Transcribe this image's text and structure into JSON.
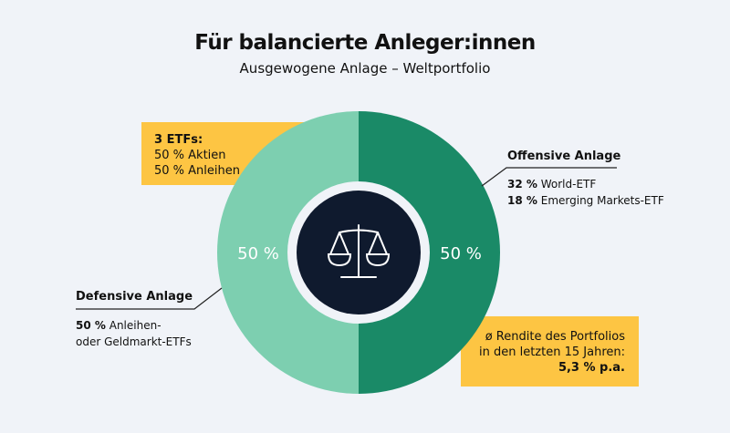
{
  "header": {
    "title": "Für balancierte Anleger:innen",
    "subtitle": "Ausgewogene Anlage – Weltportfolio"
  },
  "info_box": {
    "heading": "3 ETFs:",
    "lines": [
      "50 % Aktien",
      "50 % Anleihen"
    ]
  },
  "return_box": {
    "line1": "ø Rendite des Portfolios",
    "line2": "in den letzten 15 Jahren:",
    "value": "5,3 % p.a."
  },
  "defensive": {
    "heading": "Defensive Anlage",
    "pct": "50 %",
    "line1": "Anleihen-",
    "line2": "oder Geldmarkt-ETFs"
  },
  "offensive": {
    "heading": "Offensive Anlage",
    "items": [
      {
        "pct": "32 %",
        "label": "World-ETF"
      },
      {
        "pct": "18 %",
        "label": "Emerging Markets-ETF"
      }
    ]
  },
  "center_icon": "scales-icon",
  "chart_data": {
    "type": "pie",
    "title": "Ausgewogene Anlage – Weltportfolio",
    "slices": [
      {
        "name": "Offensive Anlage",
        "value": 50,
        "label": "50 %",
        "color": "#1a8a67"
      },
      {
        "name": "Defensive Anlage",
        "value": 50,
        "label": "50 %",
        "color": "#7dcfb0"
      }
    ]
  }
}
